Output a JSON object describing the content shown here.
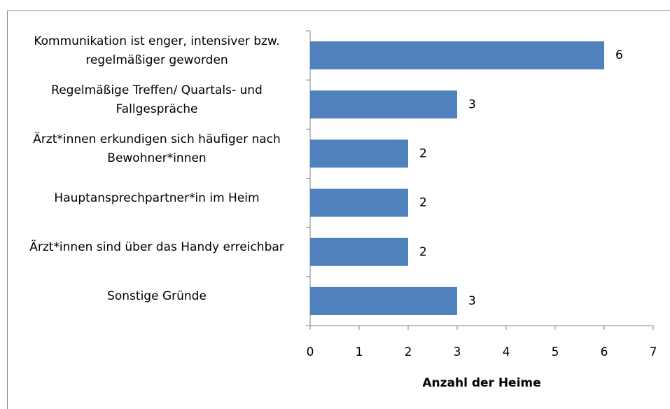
{
  "chart_data": {
    "type": "barh",
    "categories": [
      "Kommunikation ist enger, intensiver bzw. regelmäßiger geworden",
      "Regelmäßige Treffen/ Quartals- und Fallgespräche",
      "Ärzt*innen erkundigen sich häufiger nach Bewohner*innen",
      "Hauptansprechpartner*in im Heim",
      "Ärzt*innen sind über das Handy erreichbar",
      "Sonstige Gründe"
    ],
    "values": [
      6,
      3,
      2,
      2,
      2,
      3
    ],
    "color": "#4f81bd",
    "xlabel": "Anzahl der Heime",
    "xlim": [
      0,
      7
    ],
    "xticks": [
      0,
      1,
      2,
      3,
      4,
      5,
      6,
      7
    ],
    "grid": false
  }
}
